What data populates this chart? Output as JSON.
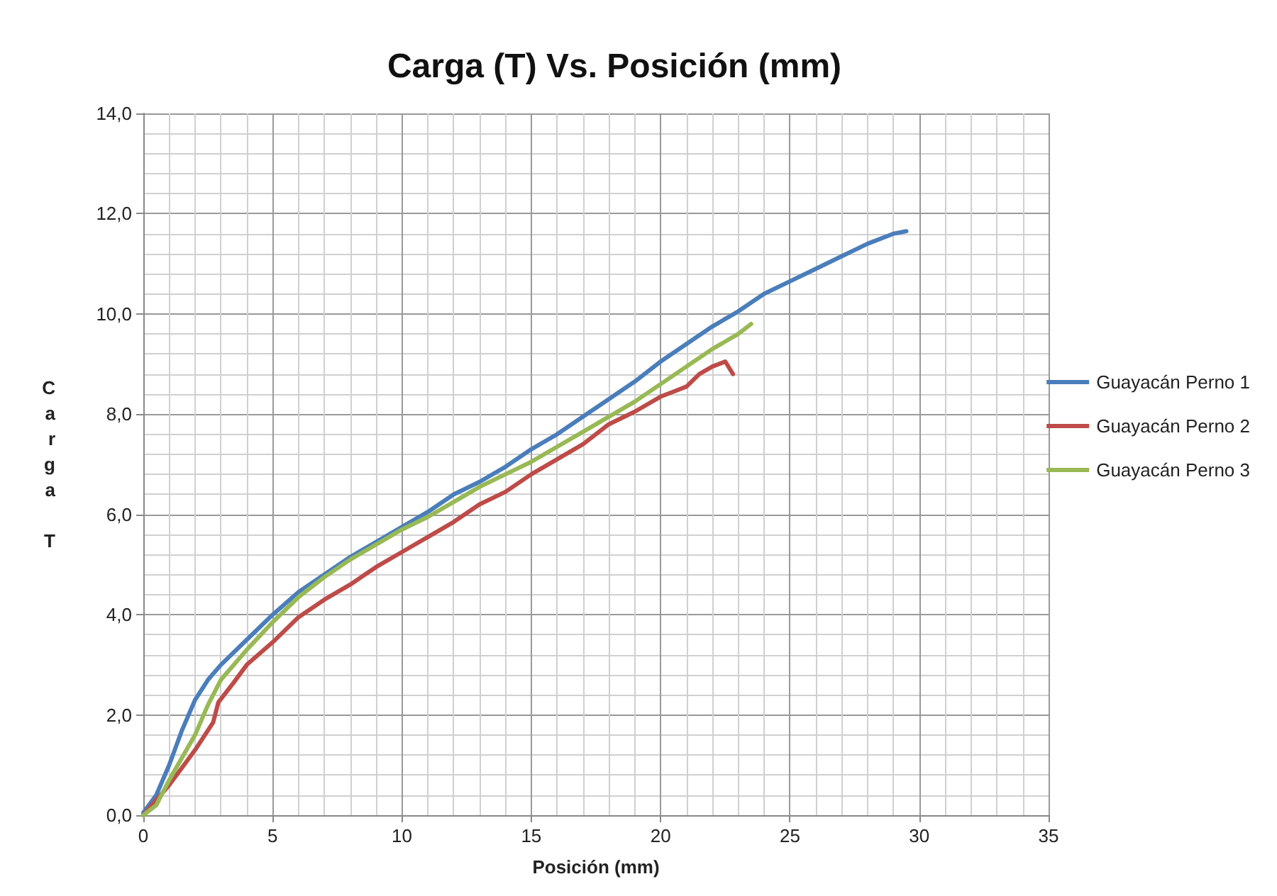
{
  "chart_data": {
    "type": "line",
    "title": "Carga (T) Vs. Posición (mm)",
    "xlabel": "Posición (mm)",
    "ylabel": "Carga T",
    "xlim": [
      0,
      35
    ],
    "xticks": [
      0,
      5,
      10,
      15,
      20,
      25,
      30,
      35
    ],
    "ylim": [
      0,
      14
    ],
    "yticks": [
      {
        "value": 0,
        "label": "0,0"
      },
      {
        "value": 2,
        "label": "2,0"
      },
      {
        "value": 4,
        "label": "4,0"
      },
      {
        "value": 6,
        "label": "6,0"
      },
      {
        "value": 8,
        "label": "8,0"
      },
      {
        "value": 10,
        "label": "10,0"
      },
      {
        "value": 12,
        "label": "12,0"
      },
      {
        "value": 14,
        "label": "14,0"
      }
    ],
    "grid": true,
    "legend": "right",
    "marker": "none",
    "line_style": "solid",
    "series": [
      {
        "name": "Guayacán Perno 1",
        "color": "#4a7ebb",
        "x": [
          0,
          0.5,
          1,
          1.5,
          2,
          2.5,
          3,
          4,
          5,
          6,
          7,
          8,
          9,
          10,
          11,
          12,
          13,
          14,
          15,
          16,
          17,
          18,
          19,
          20,
          21,
          22,
          23,
          24,
          25,
          26,
          27,
          28,
          29,
          29.5
        ],
        "values": [
          0.05,
          0.4,
          1.0,
          1.7,
          2.3,
          2.7,
          3.0,
          3.5,
          4.0,
          4.45,
          4.8,
          5.15,
          5.45,
          5.75,
          6.05,
          6.4,
          6.65,
          6.95,
          7.3,
          7.6,
          7.95,
          8.3,
          8.65,
          9.05,
          9.4,
          9.75,
          10.05,
          10.4,
          10.65,
          10.9,
          11.15,
          11.4,
          11.6,
          11.65
        ]
      },
      {
        "name": "Guayacán Perno 2",
        "color": "#be4b48",
        "x": [
          0,
          1,
          2,
          2.7,
          2.9,
          3.5,
          4,
          5,
          6,
          7,
          8,
          9,
          10,
          11,
          12,
          13,
          14,
          15,
          16,
          17,
          18,
          19,
          20,
          20.5,
          21,
          21.5,
          22,
          22.5,
          22.8
        ],
        "values": [
          0,
          0.6,
          1.3,
          1.85,
          2.25,
          2.65,
          3.0,
          3.45,
          3.95,
          4.3,
          4.6,
          4.95,
          5.25,
          5.55,
          5.85,
          6.2,
          6.45,
          6.8,
          7.1,
          7.4,
          7.8,
          8.05,
          8.35,
          8.45,
          8.55,
          8.8,
          8.95,
          9.05,
          8.8
        ]
      },
      {
        "name": "Guayacán Perno 3",
        "color": "#98b954",
        "x": [
          0,
          0.5,
          1,
          2,
          2.5,
          3,
          4,
          5,
          6,
          7,
          8,
          9,
          10,
          11,
          12,
          13,
          14,
          15,
          16,
          17,
          18,
          19,
          20,
          21,
          22,
          22.5,
          23,
          23.5
        ],
        "values": [
          0,
          0.2,
          0.7,
          1.6,
          2.2,
          2.7,
          3.3,
          3.85,
          4.35,
          4.75,
          5.1,
          5.4,
          5.7,
          5.95,
          6.25,
          6.55,
          6.8,
          7.05,
          7.35,
          7.65,
          7.95,
          8.25,
          8.6,
          8.95,
          9.3,
          9.45,
          9.6,
          9.8
        ]
      }
    ]
  }
}
